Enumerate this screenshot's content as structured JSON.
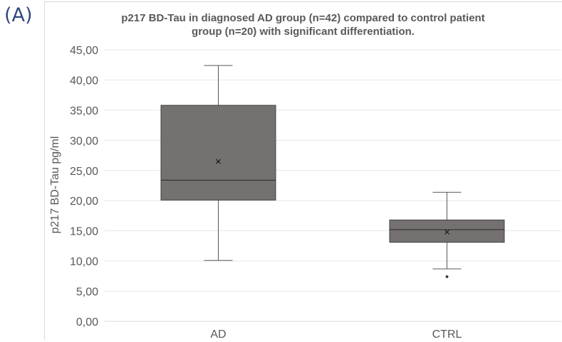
{
  "panel_label": "(A)",
  "chart_data": {
    "type": "box",
    "title_lines": [
      "p217 BD-Tau in diagnosed AD group (n=42) compared to control patient",
      "group (n=20) with significant differentiation."
    ],
    "xlabel": "",
    "ylabel": "p217 BD-Tau pg/ml",
    "ylim": [
      0,
      45
    ],
    "y_ticks": [
      "0,00",
      "5,00",
      "10,00",
      "15,00",
      "20,00",
      "25,00",
      "30,00",
      "35,00",
      "40,00",
      "45,00"
    ],
    "grid": true,
    "categories": [
      "AD",
      "CTRL"
    ],
    "boxes": [
      {
        "category": "AD",
        "min": 10.1,
        "q1": 20.1,
        "median": 23.4,
        "q3": 35.8,
        "max": 42.4,
        "mean": 26.5,
        "outliers": []
      },
      {
        "category": "CTRL",
        "min": 8.7,
        "q1": 13.1,
        "median": 15.2,
        "q3": 16.8,
        "max": 21.4,
        "mean": 14.8,
        "outliers": [
          7.4
        ]
      }
    ],
    "box_color": "#767171"
  }
}
